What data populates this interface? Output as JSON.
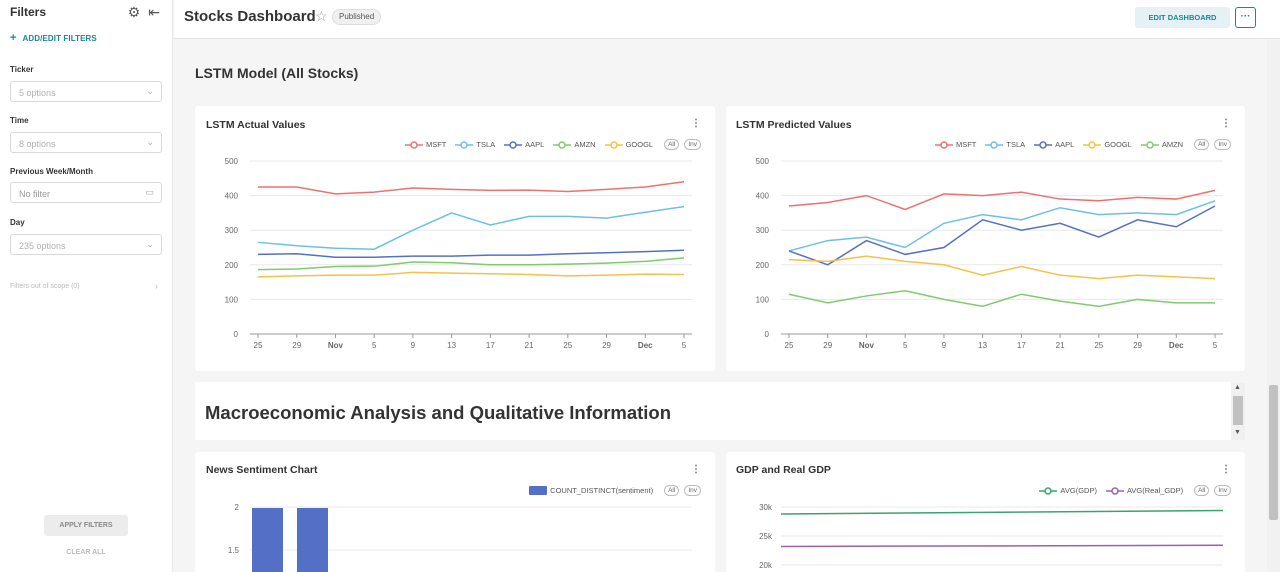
{
  "sidebar": {
    "title": "Filters",
    "add_label": "ADD/EDIT FILTERS",
    "filters": [
      {
        "label": "Ticker",
        "value": "5 options"
      },
      {
        "label": "Time",
        "value": "8 options"
      },
      {
        "label": "Previous Week/Month",
        "value": "No filter"
      },
      {
        "label": "Day",
        "value": "235 options"
      }
    ],
    "scope": "Filters out of scope (0)",
    "apply": "APPLY FILTERS",
    "clear": "CLEAR ALL"
  },
  "header": {
    "title": "Stocks Dashboard",
    "badge": "Published",
    "edit": "EDIT DASHBOARD",
    "more": "···"
  },
  "section_title": "LSTM Model (All Stocks)",
  "macro_title": "Macroeconomic Analysis and Qualitative Information",
  "legend_all": "All",
  "legend_inv": "Inv",
  "chart_data": [
    {
      "type": "line",
      "title": "LSTM Actual Values",
      "x": [
        "25",
        "29",
        "Nov",
        "5",
        "9",
        "13",
        "17",
        "21",
        "25",
        "29",
        "Dec",
        "5"
      ],
      "ylim": [
        0,
        500
      ],
      "yticks": [
        0,
        100,
        200,
        300,
        400,
        500
      ],
      "series": [
        {
          "name": "MSFT",
          "color": "#f07070",
          "values": [
            425,
            425,
            405,
            410,
            422,
            418,
            415,
            416,
            412,
            418,
            425,
            440
          ]
        },
        {
          "name": "TSLA",
          "color": "#6cc0e5",
          "values": [
            265,
            255,
            248,
            245,
            300,
            350,
            315,
            340,
            340,
            335,
            352,
            368
          ]
        },
        {
          "name": "AAPL",
          "color": "#5470c6",
          "values": [
            230,
            232,
            222,
            222,
            225,
            225,
            228,
            228,
            232,
            235,
            238,
            242
          ]
        },
        {
          "name": "AMZN",
          "color": "#7fcc6c",
          "values": [
            186,
            188,
            195,
            196,
            208,
            206,
            200,
            200,
            202,
            205,
            210,
            220
          ]
        },
        {
          "name": "GOOGL",
          "color": "#f6c04a",
          "values": [
            165,
            168,
            170,
            170,
            178,
            176,
            174,
            172,
            168,
            170,
            173,
            172
          ]
        }
      ]
    },
    {
      "type": "line",
      "title": "LSTM Predicted Values",
      "x": [
        "25",
        "29",
        "Nov",
        "5",
        "9",
        "13",
        "17",
        "21",
        "25",
        "29",
        "Dec",
        "5"
      ],
      "ylim": [
        0,
        500
      ],
      "yticks": [
        0,
        100,
        200,
        300,
        400,
        500
      ],
      "series": [
        {
          "name": "MSFT",
          "color": "#f07070",
          "values": [
            370,
            380,
            400,
            360,
            405,
            400,
            410,
            390,
            385,
            395,
            390,
            415
          ]
        },
        {
          "name": "TSLA",
          "color": "#6cc0e5",
          "values": [
            240,
            270,
            280,
            250,
            320,
            345,
            330,
            365,
            345,
            350,
            345,
            385
          ]
        },
        {
          "name": "AAPL",
          "color": "#5470c6",
          "values": [
            240,
            200,
            270,
            230,
            250,
            330,
            300,
            320,
            280,
            330,
            310,
            370
          ]
        },
        {
          "name": "GOOGL",
          "color": "#f6c04a",
          "values": [
            215,
            210,
            225,
            210,
            200,
            170,
            195,
            170,
            160,
            170,
            165,
            160
          ]
        },
        {
          "name": "AMZN",
          "color": "#7fcc6c",
          "values": [
            115,
            90,
            110,
            125,
            100,
            80,
            115,
            95,
            80,
            100,
            90,
            90
          ]
        }
      ]
    },
    {
      "type": "bar",
      "title": "News Sentiment Chart",
      "series": [
        {
          "name": "COUNT_DISTINCT(sentiment)",
          "color": "#5470c6",
          "values": [
            2,
            2
          ]
        }
      ],
      "yticks_visible": [
        "2",
        "1.5"
      ]
    },
    {
      "type": "line",
      "title": "GDP and Real GDP",
      "yticks_visible": [
        "30k",
        "25k",
        "20k"
      ],
      "series": [
        {
          "name": "AVG(GDP)",
          "color": "#3ba272",
          "values": [
            28800,
            29400
          ]
        },
        {
          "name": "AVG(Real_GDP)",
          "color": "#9a60b4",
          "values": [
            23200,
            23400
          ]
        }
      ]
    }
  ]
}
